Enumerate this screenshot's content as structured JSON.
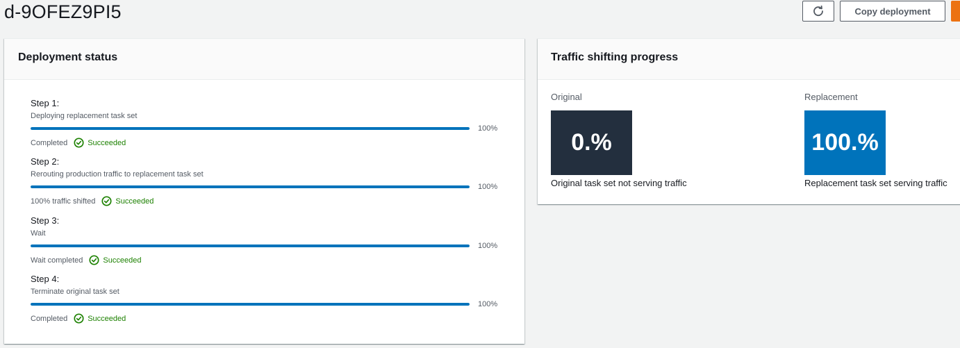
{
  "header": {
    "title": "d-9OFEZ9PI5",
    "refresh_icon": "refresh-icon",
    "copy_label": "Copy deployment",
    "primary_color": "#ec7211"
  },
  "deployment_status": {
    "title": "Deployment status",
    "steps": [
      {
        "title": "Step 1:",
        "description": "Deploying replacement task set",
        "progress_pct": 100,
        "progress_label": "100%",
        "status_text": "Completed",
        "result": "Succeeded"
      },
      {
        "title": "Step 2:",
        "description": "Rerouting production traffic to replacement task set",
        "progress_pct": 100,
        "progress_label": "100%",
        "status_text": "100% traffic shifted",
        "result": "Succeeded"
      },
      {
        "title": "Step 3:",
        "description": "Wait",
        "progress_pct": 100,
        "progress_label": "100%",
        "status_text": "Wait completed",
        "result": "Succeeded"
      },
      {
        "title": "Step 4:",
        "description": "Terminate original task set",
        "progress_pct": 100,
        "progress_label": "100%",
        "status_text": "Completed",
        "result": "Succeeded"
      }
    ],
    "success_icon": "check-circle-icon",
    "success_color": "#1d8102",
    "progress_color": "#0073bb"
  },
  "traffic": {
    "title": "Traffic shifting progress",
    "original": {
      "label": "Original",
      "value": "0.%",
      "caption": "Original task set not serving traffic",
      "color": "#232f3e"
    },
    "replacement": {
      "label": "Replacement",
      "value": "100.%",
      "caption": "Replacement task set serving traffic",
      "color": "#0073bb"
    }
  }
}
